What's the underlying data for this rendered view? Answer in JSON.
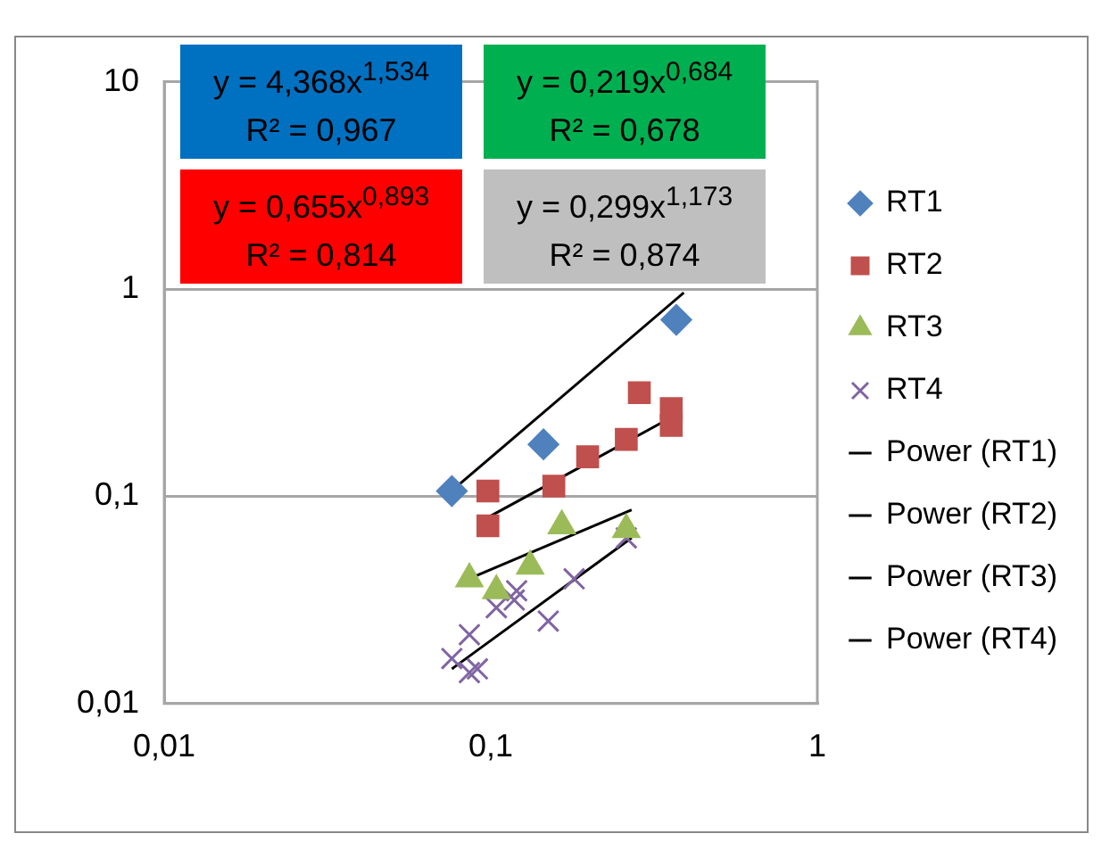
{
  "chart_data": {
    "type": "scatter",
    "log": "xy",
    "grid": "y",
    "legend": "right",
    "xlim": [
      0.01,
      1
    ],
    "xticks": [
      {
        "value": 0.01,
        "label": "0,01"
      },
      {
        "value": 0.1,
        "label": "0,1"
      },
      {
        "value": 1,
        "label": "1"
      }
    ],
    "ylim": [
      0.01,
      10
    ],
    "yticks": [
      {
        "value": 0.01,
        "label": "0,01"
      },
      {
        "value": 0.1,
        "label": "0,1"
      },
      {
        "value": 1,
        "label": "1"
      },
      {
        "value": 10,
        "label": "10"
      }
    ],
    "series": [
      {
        "name": "RT1",
        "color": "#4f81bd",
        "marker": "diamond",
        "x": [
          0.076,
          0.145,
          0.37
        ],
        "values": [
          0.106,
          0.178,
          0.71
        ]
      },
      {
        "name": "RT2",
        "color": "#c0504d",
        "marker": "square",
        "x": [
          0.098,
          0.098,
          0.156,
          0.198,
          0.26,
          0.285,
          0.357,
          0.357
        ],
        "values": [
          0.106,
          0.072,
          0.112,
          0.155,
          0.188,
          0.316,
          0.265,
          0.22
        ]
      },
      {
        "name": "RT3",
        "color": "#9bbb59",
        "marker": "triangle",
        "x": [
          0.086,
          0.104,
          0.132,
          0.165,
          0.26
        ],
        "values": [
          0.04,
          0.035,
          0.046,
          0.072,
          0.069
        ]
      },
      {
        "name": "RT4",
        "color": "#8064a2",
        "marker": "cross",
        "x": [
          0.076,
          0.086,
          0.091,
          0.086,
          0.104,
          0.118,
          0.12,
          0.15,
          0.18,
          0.26
        ],
        "values": [
          0.0165,
          0.0141,
          0.0147,
          0.0215,
          0.029,
          0.0316,
          0.035,
          0.025,
          0.04,
          0.063
        ]
      },
      {
        "name": "Power (RT1)",
        "type": "line",
        "color": "#000000",
        "x": [
          0.08,
          0.39
        ],
        "values": [
          0.114,
          0.96
        ]
      },
      {
        "name": "Power (RT2)",
        "type": "line",
        "color": "#000000",
        "x": [
          0.098,
          0.357
        ],
        "values": [
          0.079,
          0.24
        ]
      },
      {
        "name": "Power (RT3)",
        "type": "line",
        "color": "#000000",
        "x": [
          0.089,
          0.27
        ],
        "values": [
          0.041,
          0.086
        ]
      },
      {
        "name": "Power (RT4)",
        "type": "line",
        "color": "#000000",
        "x": [
          0.076,
          0.27
        ],
        "values": [
          0.0147,
          0.063
        ]
      }
    ],
    "annotations": [
      "y = 4,368x$^{1,534}$\nR² = 0,967",
      "y = 0,219x$^{0,684}$\nR² = 0,678",
      "y = 0,655x$^{0,893}$\nR² = 0,814",
      "y = 0,299x$^{1,173}$\nR² = 0,874"
    ]
  }
}
